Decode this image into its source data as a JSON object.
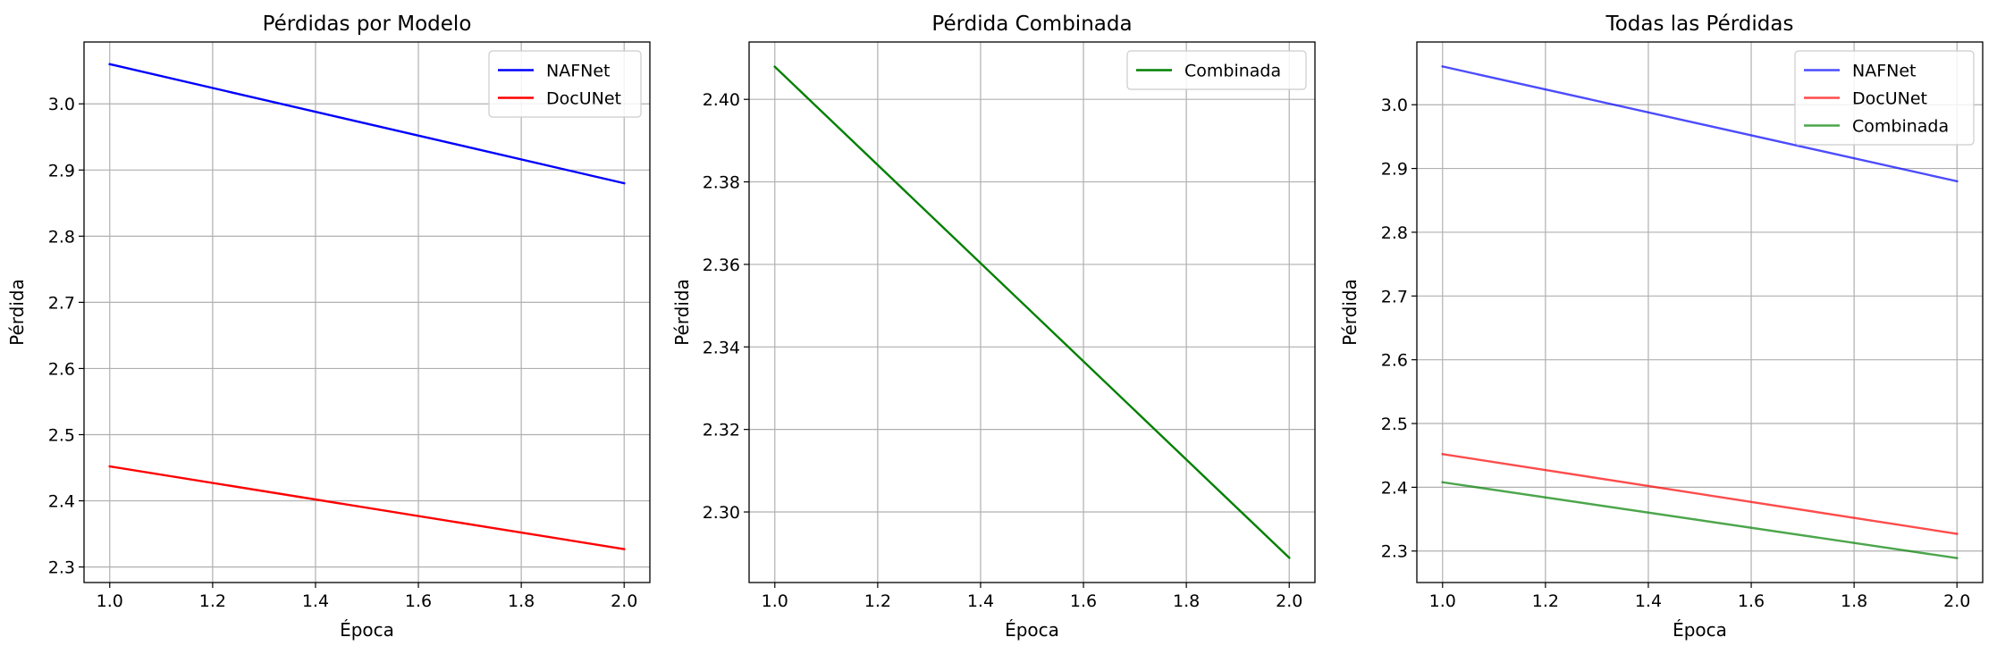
{
  "chart_data": [
    {
      "type": "line",
      "title": "Pérdidas por Modelo",
      "xlabel": "Época",
      "ylabel": "Pérdida",
      "xlim": [
        0.95,
        2.05
      ],
      "ylim": [
        2.2765,
        3.0935
      ],
      "xticks": [
        "1.0",
        "1.2",
        "1.4",
        "1.6",
        "1.8",
        "2.0"
      ],
      "yticks": [
        "2.3",
        "2.4",
        "2.5",
        "2.6",
        "2.7",
        "2.8",
        "2.9",
        "3.0"
      ],
      "grid": true,
      "legend": "top-right",
      "series": [
        {
          "name": "NAFNet",
          "color": "#0000ff",
          "x": [
            1.0,
            2.0
          ],
          "y": [
            3.06,
            2.88
          ]
        },
        {
          "name": "DocUNet",
          "color": "#ff0000",
          "x": [
            1.0,
            2.0
          ],
          "y": [
            2.452,
            2.327
          ]
        }
      ]
    },
    {
      "type": "line",
      "title": "Pérdida Combinada",
      "xlabel": "Época",
      "ylabel": "Pérdida",
      "xlim": [
        0.95,
        2.05
      ],
      "ylim": [
        2.2829,
        2.4139
      ],
      "xticks": [
        "1.0",
        "1.2",
        "1.4",
        "1.6",
        "1.8",
        "2.0"
      ],
      "yticks": [
        "2.30",
        "2.32",
        "2.34",
        "2.36",
        "2.38",
        "2.40"
      ],
      "grid": true,
      "legend": "top-right",
      "series": [
        {
          "name": "Combinada",
          "color": "#008000",
          "x": [
            1.0,
            2.0
          ],
          "y": [
            2.4079,
            2.2889
          ]
        }
      ]
    },
    {
      "type": "line",
      "title": "Todas las Pérdidas",
      "xlabel": "Época",
      "ylabel": "Pérdida",
      "xlim": [
        0.95,
        2.05
      ],
      "ylim": [
        2.2506,
        3.0984
      ],
      "xticks": [
        "1.0",
        "1.2",
        "1.4",
        "1.6",
        "1.8",
        "2.0"
      ],
      "yticks": [
        "2.3",
        "2.4",
        "2.5",
        "2.6",
        "2.7",
        "2.8",
        "2.9",
        "3.0"
      ],
      "grid": true,
      "legend": "top-right",
      "series": [
        {
          "name": "NAFNet",
          "color": "#0000ff",
          "alpha": 0.7,
          "x": [
            1.0,
            2.0
          ],
          "y": [
            3.06,
            2.88
          ]
        },
        {
          "name": "DocUNet",
          "color": "#ff0000",
          "alpha": 0.7,
          "x": [
            1.0,
            2.0
          ],
          "y": [
            2.452,
            2.327
          ]
        },
        {
          "name": "Combinada",
          "color": "#008000",
          "alpha": 0.7,
          "x": [
            1.0,
            2.0
          ],
          "y": [
            2.4079,
            2.2889
          ]
        }
      ]
    }
  ]
}
